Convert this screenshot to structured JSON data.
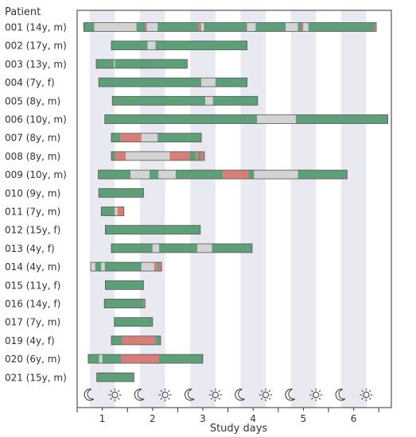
{
  "chart_data": {
    "type": "timeline",
    "ylabel": "Patient",
    "xlabel": "Study days",
    "xlim": [
      0.5,
      6.75
    ],
    "x_ticks": [
      1,
      2,
      3,
      4,
      5,
      6
    ],
    "x_tick_labels": [
      "1",
      "2",
      "3",
      "4",
      "5",
      "6"
    ],
    "night_shading_color": "#e8e9f1",
    "night_periods": [
      [
        0.75,
        1.25
      ],
      [
        1.75,
        2.25
      ],
      [
        2.75,
        3.25
      ],
      [
        3.75,
        4.25
      ],
      [
        4.75,
        5.25
      ],
      [
        5.75,
        6.25
      ]
    ],
    "period_icons": [
      {
        "x": 0.75,
        "icon": "moon-icon"
      },
      {
        "x": 1.25,
        "icon": "sun-icon"
      },
      {
        "x": 1.75,
        "icon": "moon-icon"
      },
      {
        "x": 2.25,
        "icon": "sun-icon"
      },
      {
        "x": 2.75,
        "icon": "moon-icon"
      },
      {
        "x": 3.25,
        "icon": "sun-icon"
      },
      {
        "x": 3.75,
        "icon": "moon-icon"
      },
      {
        "x": 4.25,
        "icon": "sun-icon"
      },
      {
        "x": 4.75,
        "icon": "moon-icon"
      },
      {
        "x": 5.25,
        "icon": "sun-icon"
      },
      {
        "x": 5.75,
        "icon": "moon-icon"
      },
      {
        "x": 6.25,
        "icon": "sun-icon"
      }
    ],
    "state_colors": {
      "green": "#5e9e78",
      "grey": "#d3d3d3",
      "red": "#d87e78"
    },
    "patients": [
      {
        "label": "001 (14y, m)",
        "start": 0.63,
        "end": 6.45,
        "segments": [
          {
            "state": "green",
            "start": 0.63,
            "end": 0.84
          },
          {
            "state": "grey",
            "start": 0.84,
            "end": 1.68
          },
          {
            "state": "green",
            "start": 1.68,
            "end": 1.86
          },
          {
            "state": "red",
            "start": 1.86,
            "end": 1.89
          },
          {
            "state": "grey",
            "start": 1.89,
            "end": 2.1
          },
          {
            "state": "green",
            "start": 2.1,
            "end": 2.92
          },
          {
            "state": "red",
            "start": 2.92,
            "end": 2.97
          },
          {
            "state": "grey",
            "start": 2.97,
            "end": 3.02
          },
          {
            "state": "green",
            "start": 3.02,
            "end": 3.88
          },
          {
            "state": "grey",
            "start": 3.88,
            "end": 4.05
          },
          {
            "state": "green",
            "start": 4.05,
            "end": 4.65
          },
          {
            "state": "grey",
            "start": 4.65,
            "end": 4.89
          },
          {
            "state": "green",
            "start": 4.89,
            "end": 4.97
          },
          {
            "state": "red",
            "start": 4.97,
            "end": 5.0
          },
          {
            "state": "grey",
            "start": 5.0,
            "end": 5.1
          },
          {
            "state": "green",
            "start": 5.1,
            "end": 6.42
          },
          {
            "state": "red",
            "start": 6.42,
            "end": 6.45
          }
        ]
      },
      {
        "label": "002 (17y, m)",
        "start": 1.18,
        "end": 3.88,
        "segments": [
          {
            "state": "green",
            "start": 1.18,
            "end": 1.9
          },
          {
            "state": "grey",
            "start": 1.9,
            "end": 2.06
          },
          {
            "state": "green",
            "start": 2.06,
            "end": 3.88
          }
        ]
      },
      {
        "label": "003 (13y, m)",
        "start": 0.88,
        "end": 2.69,
        "segments": [
          {
            "state": "green",
            "start": 0.88,
            "end": 1.23
          },
          {
            "state": "grey",
            "start": 1.23,
            "end": 1.25
          },
          {
            "state": "green",
            "start": 1.25,
            "end": 2.69
          }
        ]
      },
      {
        "label": "004 (7y, f)",
        "start": 0.93,
        "end": 3.88,
        "segments": [
          {
            "state": "green",
            "start": 0.93,
            "end": 2.97
          },
          {
            "state": "grey",
            "start": 2.97,
            "end": 3.25
          },
          {
            "state": "green",
            "start": 3.25,
            "end": 3.88
          }
        ]
      },
      {
        "label": "005 (8y, m)",
        "start": 1.2,
        "end": 4.09,
        "segments": [
          {
            "state": "green",
            "start": 1.2,
            "end": 3.05
          },
          {
            "state": "grey",
            "start": 3.05,
            "end": 3.2
          },
          {
            "state": "green",
            "start": 3.2,
            "end": 4.09
          }
        ]
      },
      {
        "label": "006 (10y, m)",
        "start": 1.05,
        "end": 6.68,
        "segments": [
          {
            "state": "green",
            "start": 1.05,
            "end": 4.08
          },
          {
            "state": "grey",
            "start": 4.08,
            "end": 4.85
          },
          {
            "state": "green",
            "start": 4.85,
            "end": 6.68
          }
        ]
      },
      {
        "label": "007 (8y, m)",
        "start": 1.18,
        "end": 2.97,
        "segments": [
          {
            "state": "green",
            "start": 1.18,
            "end": 1.36
          },
          {
            "state": "red",
            "start": 1.36,
            "end": 1.78
          },
          {
            "state": "grey",
            "start": 1.78,
            "end": 2.1
          },
          {
            "state": "green",
            "start": 2.1,
            "end": 2.97
          }
        ]
      },
      {
        "label": "008 (8y, m)",
        "start": 1.18,
        "end": 3.03,
        "segments": [
          {
            "state": "green",
            "start": 1.18,
            "end": 1.26
          },
          {
            "state": "red",
            "start": 1.26,
            "end": 1.47
          },
          {
            "state": "grey",
            "start": 1.47,
            "end": 2.34
          },
          {
            "state": "red",
            "start": 2.34,
            "end": 2.74
          },
          {
            "state": "green",
            "start": 2.74,
            "end": 2.86
          },
          {
            "state": "red",
            "start": 2.86,
            "end": 2.9
          },
          {
            "state": "green",
            "start": 2.9,
            "end": 2.96
          },
          {
            "state": "red",
            "start": 2.96,
            "end": 3.03
          }
        ]
      },
      {
        "label": "009 (10y, m)",
        "start": 0.92,
        "end": 5.87,
        "segments": [
          {
            "state": "green",
            "start": 0.92,
            "end": 1.56
          },
          {
            "state": "grey",
            "start": 1.56,
            "end": 1.94
          },
          {
            "state": "green",
            "start": 1.94,
            "end": 2.12
          },
          {
            "state": "grey",
            "start": 2.12,
            "end": 2.46
          },
          {
            "state": "green",
            "start": 2.46,
            "end": 3.4
          },
          {
            "state": "red",
            "start": 3.4,
            "end": 3.91
          },
          {
            "state": "green",
            "start": 3.91,
            "end": 4.02
          },
          {
            "state": "grey",
            "start": 4.02,
            "end": 4.89
          },
          {
            "state": "green",
            "start": 4.89,
            "end": 5.87
          }
        ]
      },
      {
        "label": "010 (9y, m)",
        "start": 0.93,
        "end": 1.82,
        "segments": [
          {
            "state": "green",
            "start": 0.93,
            "end": 1.82
          }
        ]
      },
      {
        "label": "011 (7y, m)",
        "start": 0.98,
        "end": 1.43,
        "segments": [
          {
            "state": "green",
            "start": 0.98,
            "end": 1.25
          },
          {
            "state": "grey",
            "start": 1.25,
            "end": 1.3
          },
          {
            "state": "red",
            "start": 1.3,
            "end": 1.43
          }
        ]
      },
      {
        "label": "012 (15y, f)",
        "start": 1.06,
        "end": 2.95,
        "segments": [
          {
            "state": "green",
            "start": 1.06,
            "end": 2.95
          }
        ]
      },
      {
        "label": "013 (4y, f)",
        "start": 1.18,
        "end": 3.98,
        "segments": [
          {
            "state": "green",
            "start": 1.18,
            "end": 2.0
          },
          {
            "state": "grey",
            "start": 2.0,
            "end": 2.13
          },
          {
            "state": "green",
            "start": 2.13,
            "end": 2.89
          },
          {
            "state": "grey",
            "start": 2.89,
            "end": 3.18
          },
          {
            "state": "green",
            "start": 3.18,
            "end": 3.98
          }
        ]
      },
      {
        "label": "014 (4y, m)",
        "start": 0.77,
        "end": 2.18,
        "segments": [
          {
            "state": "grey",
            "start": 0.77,
            "end": 0.86
          },
          {
            "state": "green",
            "start": 0.86,
            "end": 0.98
          },
          {
            "state": "grey",
            "start": 0.98,
            "end": 1.05
          },
          {
            "state": "green",
            "start": 1.05,
            "end": 1.78
          },
          {
            "state": "grey",
            "start": 1.78,
            "end": 2.03
          },
          {
            "state": "red",
            "start": 2.03,
            "end": 2.1
          },
          {
            "state": "green",
            "start": 2.1,
            "end": 2.14
          },
          {
            "state": "red",
            "start": 2.14,
            "end": 2.18
          }
        ]
      },
      {
        "label": "015 (11y, f)",
        "start": 1.06,
        "end": 1.82,
        "segments": [
          {
            "state": "green",
            "start": 1.06,
            "end": 1.82
          }
        ]
      },
      {
        "label": "016 (14y, f)",
        "start": 1.04,
        "end": 1.85,
        "segments": [
          {
            "state": "green",
            "start": 1.04,
            "end": 1.82
          },
          {
            "state": "red",
            "start": 1.82,
            "end": 1.85
          }
        ]
      },
      {
        "label": "017 (7y, m)",
        "start": 1.24,
        "end": 2.0,
        "segments": [
          {
            "state": "green",
            "start": 1.24,
            "end": 2.0
          }
        ]
      },
      {
        "label": "019 (4y, f)",
        "start": 1.18,
        "end": 2.16,
        "segments": [
          {
            "state": "green",
            "start": 1.18,
            "end": 1.4
          },
          {
            "state": "red",
            "start": 1.4,
            "end": 2.06
          },
          {
            "state": "green",
            "start": 2.06,
            "end": 2.16
          }
        ]
      },
      {
        "label": "020 (6y, m)",
        "start": 0.72,
        "end": 3.0,
        "segments": [
          {
            "state": "green",
            "start": 0.72,
            "end": 0.94
          },
          {
            "state": "grey",
            "start": 0.94,
            "end": 1.0
          },
          {
            "state": "green",
            "start": 1.0,
            "end": 1.38
          },
          {
            "state": "red",
            "start": 1.38,
            "end": 2.13
          },
          {
            "state": "green",
            "start": 2.13,
            "end": 3.0
          }
        ]
      },
      {
        "label": "021 (15y, m)",
        "start": 0.89,
        "end": 1.63,
        "segments": [
          {
            "state": "green",
            "start": 0.89,
            "end": 1.63
          }
        ]
      }
    ]
  }
}
